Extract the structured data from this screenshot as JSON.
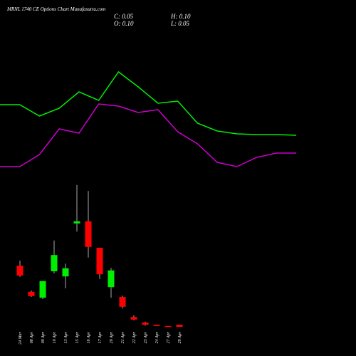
{
  "chart_data": [
    {
      "type": "line",
      "title": "MRNL 1740 CE Options Chart Munafasutra.com",
      "ylim": [
        0,
        3.6
      ],
      "series": [
        {
          "color": "#00ee00",
          "values": [
            2.06,
            2.06,
            1.74,
            1.96,
            2.42,
            2.18,
            2.98,
            2.56,
            2.1,
            2.16,
            1.54,
            1.32,
            1.24,
            1.22,
            1.22,
            1.2
          ]
        },
        {
          "color": "#cc00cc",
          "values": [
            0.32,
            0.32,
            0.66,
            1.38,
            1.26,
            2.08,
            2.02,
            1.84,
            1.92,
            1.3,
            0.96,
            0.44,
            0.32,
            0.58,
            0.7,
            0.7
          ]
        }
      ]
    },
    {
      "type": "candlestick",
      "ohlc_labels": {
        "close": "C: 0.05",
        "high": "H: 0.10",
        "open": "O: 0.10",
        "low": "L: 0.05"
      },
      "up_color": "#00ee00",
      "down_color": "#ff0000",
      "ylim": [
        0,
        3.5
      ],
      "categories": [
        "24 Mar",
        "08 Apr",
        "09 Apr",
        "10 Apr",
        "13 Apr",
        "15 Apr",
        "16 Apr",
        "17 Apr",
        "20 Apr",
        "21 Apr",
        "22 Apr",
        "23 Apr",
        "24 Apr",
        "27 Apr",
        "29 Apr"
      ],
      "open": [
        1.48,
        0.87,
        0.73,
        1.35,
        1.23,
        2.47,
        2.52,
        1.9,
        0.98,
        0.75,
        0.28,
        0.15,
        0.1,
        0.07,
        0.1
      ],
      "high": [
        1.6,
        0.9,
        1.12,
        2.07,
        1.53,
        3.37,
        3.23,
        1.9,
        1.43,
        0.78,
        0.32,
        0.17,
        0.1,
        0.07,
        0.1
      ],
      "low": [
        1.22,
        0.75,
        0.7,
        1.3,
        0.95,
        2.28,
        1.67,
        1.17,
        0.73,
        0.48,
        0.2,
        0.08,
        0.07,
        0.05,
        0.05
      ],
      "close": [
        1.25,
        0.77,
        1.12,
        1.73,
        1.42,
        2.52,
        1.92,
        1.28,
        1.37,
        0.52,
        0.22,
        0.1,
        0.07,
        0.05,
        0.05
      ]
    }
  ]
}
